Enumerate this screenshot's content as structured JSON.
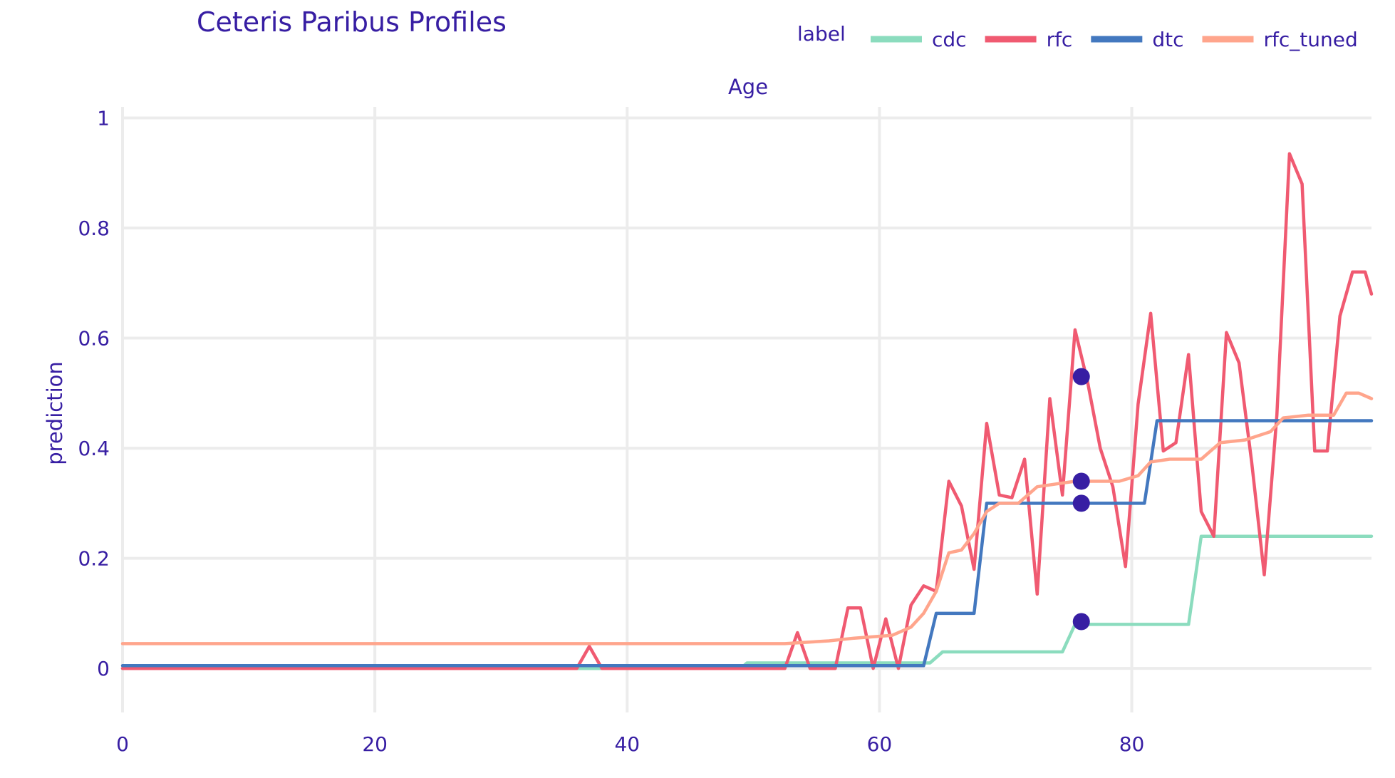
{
  "chart_data": {
    "type": "line",
    "title": "Ceteris Paribus Profiles",
    "facet_title": "Age",
    "xlabel": "",
    "ylabel": "prediction",
    "xlim": [
      0,
      99
    ],
    "ylim": [
      -0.08,
      1.02
    ],
    "x_ticks": [
      0,
      20,
      40,
      60,
      80
    ],
    "y_ticks": [
      0,
      0.2,
      0.4,
      0.6,
      0.8,
      1
    ],
    "y_tick_labels": [
      "0",
      "0.2",
      "0.4",
      "0.6",
      "0.8",
      "1"
    ],
    "grid": true,
    "legend": {
      "title": "label",
      "placement": "top-right"
    },
    "observation": {
      "x": 76
    },
    "series": [
      {
        "name": "cdc",
        "color": "#8bdcbe",
        "points": [
          [
            0,
            0
          ],
          [
            37,
            0
          ],
          [
            49,
            0
          ],
          [
            49.5,
            0.01
          ],
          [
            64,
            0.01
          ],
          [
            65,
            0.03
          ],
          [
            74.5,
            0.03
          ],
          [
            75.5,
            0.08
          ],
          [
            84.5,
            0.08
          ],
          [
            85.5,
            0.24
          ],
          [
            99,
            0.24
          ]
        ],
        "observed_y": 0.085
      },
      {
        "name": "rfc",
        "color": "#f05a71",
        "points": [
          [
            0,
            0
          ],
          [
            36,
            0
          ],
          [
            37,
            0.04
          ],
          [
            38,
            0
          ],
          [
            52.5,
            0
          ],
          [
            53.5,
            0.065
          ],
          [
            54.5,
            0
          ],
          [
            56.5,
            0
          ],
          [
            57.5,
            0.11
          ],
          [
            58.5,
            0.11
          ],
          [
            59.5,
            0
          ],
          [
            60.5,
            0.09
          ],
          [
            61.5,
            0
          ],
          [
            62.5,
            0.115
          ],
          [
            63.5,
            0.15
          ],
          [
            64.5,
            0.14
          ],
          [
            65.5,
            0.34
          ],
          [
            66.5,
            0.295
          ],
          [
            67.5,
            0.18
          ],
          [
            68.5,
            0.445
          ],
          [
            69.5,
            0.315
          ],
          [
            70.5,
            0.31
          ],
          [
            71.5,
            0.38
          ],
          [
            72.5,
            0.135
          ],
          [
            73.5,
            0.49
          ],
          [
            74.5,
            0.315
          ],
          [
            75.5,
            0.615
          ],
          [
            76.5,
            0.52
          ],
          [
            77.5,
            0.4
          ],
          [
            78.5,
            0.33
          ],
          [
            79.5,
            0.185
          ],
          [
            80.5,
            0.48
          ],
          [
            81.5,
            0.645
          ],
          [
            82.5,
            0.395
          ],
          [
            83.5,
            0.41
          ],
          [
            84.5,
            0.57
          ],
          [
            85.5,
            0.285
          ],
          [
            86.5,
            0.24
          ],
          [
            87.5,
            0.61
          ],
          [
            88.5,
            0.555
          ],
          [
            89.5,
            0.375
          ],
          [
            90.5,
            0.17
          ],
          [
            91.5,
            0.46
          ],
          [
            92.5,
            0.935
          ],
          [
            93.5,
            0.88
          ],
          [
            94.5,
            0.395
          ],
          [
            95.5,
            0.395
          ],
          [
            96.5,
            0.64
          ],
          [
            97.5,
            0.72
          ],
          [
            98.5,
            0.72
          ],
          [
            99,
            0.68
          ]
        ],
        "observed_y": 0.53
      },
      {
        "name": "dtc",
        "color": "#4378bf",
        "points": [
          [
            0,
            0.005
          ],
          [
            63.5,
            0.005
          ],
          [
            64.5,
            0.1
          ],
          [
            67.5,
            0.1
          ],
          [
            68.5,
            0.3
          ],
          [
            81,
            0.3
          ],
          [
            82,
            0.45
          ],
          [
            99,
            0.45
          ]
        ],
        "observed_y": 0.3
      },
      {
        "name": "rfc_tuned",
        "color": "#ffa58c",
        "points": [
          [
            0,
            0.045
          ],
          [
            52.5,
            0.045
          ],
          [
            56,
            0.05
          ],
          [
            58,
            0.055
          ],
          [
            61,
            0.06
          ],
          [
            62.5,
            0.075
          ],
          [
            63.5,
            0.1
          ],
          [
            64.5,
            0.14
          ],
          [
            65.5,
            0.21
          ],
          [
            66.5,
            0.215
          ],
          [
            67.5,
            0.245
          ],
          [
            68.5,
            0.285
          ],
          [
            69.5,
            0.3
          ],
          [
            71,
            0.3
          ],
          [
            72.5,
            0.33
          ],
          [
            74,
            0.335
          ],
          [
            75.5,
            0.34
          ],
          [
            77,
            0.34
          ],
          [
            79,
            0.34
          ],
          [
            80.5,
            0.35
          ],
          [
            81.5,
            0.375
          ],
          [
            83,
            0.38
          ],
          [
            85.5,
            0.38
          ],
          [
            87,
            0.41
          ],
          [
            89,
            0.415
          ],
          [
            91,
            0.43
          ],
          [
            92,
            0.455
          ],
          [
            94,
            0.46
          ],
          [
            96,
            0.46
          ],
          [
            97,
            0.5
          ],
          [
            98,
            0.5
          ],
          [
            99,
            0.49
          ]
        ],
        "observed_y": 0.34
      }
    ]
  }
}
